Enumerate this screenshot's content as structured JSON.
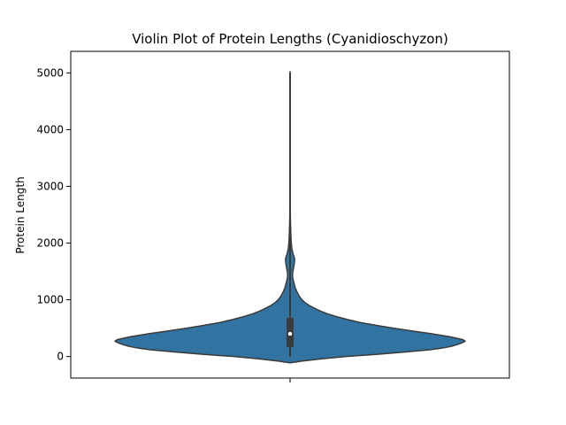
{
  "chart_data": {
    "type": "violin",
    "title": "Violin Plot of Protein Lengths (Cyanidioschyzon)",
    "ylabel": "Protein Length",
    "xlabel": "",
    "ylim": [
      -380,
      5380
    ],
    "yticks": [
      0,
      1000,
      2000,
      3000,
      4000,
      5000
    ],
    "grid": false,
    "colors": {
      "fill": "#3274a1",
      "edge": "#3a3a3a",
      "box": "#3a3a3a",
      "median": "#ffffff"
    },
    "series": [
      {
        "density_profile": [
          [
            -110,
            0.0
          ],
          [
            -80,
            0.07
          ],
          [
            -40,
            0.18
          ],
          [
            0,
            0.32
          ],
          [
            40,
            0.5
          ],
          [
            80,
            0.66
          ],
          [
            120,
            0.8
          ],
          [
            150,
            0.87
          ],
          [
            180,
            0.92
          ],
          [
            210,
            0.955
          ],
          [
            240,
            0.98
          ],
          [
            270,
            1.0
          ],
          [
            300,
            0.985
          ],
          [
            350,
            0.91
          ],
          [
            400,
            0.81
          ],
          [
            450,
            0.7
          ],
          [
            500,
            0.59
          ],
          [
            550,
            0.49
          ],
          [
            600,
            0.4
          ],
          [
            650,
            0.33
          ],
          [
            700,
            0.27
          ],
          [
            750,
            0.215
          ],
          [
            800,
            0.175
          ],
          [
            850,
            0.14
          ],
          [
            900,
            0.11
          ],
          [
            950,
            0.085
          ],
          [
            1000,
            0.068
          ],
          [
            1050,
            0.055
          ],
          [
            1100,
            0.046
          ],
          [
            1150,
            0.038
          ],
          [
            1200,
            0.031
          ],
          [
            1250,
            0.026
          ],
          [
            1300,
            0.022
          ],
          [
            1350,
            0.018
          ],
          [
            1400,
            0.015
          ],
          [
            1450,
            0.014
          ],
          [
            1500,
            0.016
          ],
          [
            1600,
            0.022
          ],
          [
            1700,
            0.026
          ],
          [
            1750,
            0.024
          ],
          [
            1800,
            0.018
          ],
          [
            1900,
            0.01
          ],
          [
            2000,
            0.007
          ],
          [
            2100,
            0.005
          ],
          [
            2200,
            0.004
          ],
          [
            2300,
            0.003
          ],
          [
            2400,
            0.002
          ],
          [
            2500,
            0.0015
          ],
          [
            2700,
            0.001
          ],
          [
            3000,
            0.0008
          ],
          [
            3500,
            0.0006
          ],
          [
            4000,
            0.0005
          ],
          [
            4500,
            0.0004
          ],
          [
            5020,
            0.0
          ]
        ],
        "box": {
          "q1": 170,
          "median": 400,
          "q3": 680,
          "whisker_low": 0,
          "whisker_high": 1230
        },
        "whisker_line": [
          0,
          5000
        ]
      }
    ]
  }
}
